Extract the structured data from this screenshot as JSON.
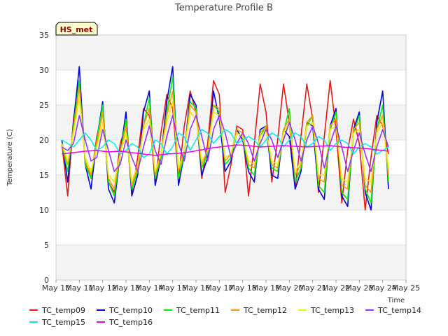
{
  "chart_data": {
    "type": "line",
    "title": "Temperature Profile B",
    "xlabel": "Time",
    "ylabel": "Temperature (C)",
    "badge": "HS_met",
    "ylim": [
      0,
      35
    ],
    "yticks": [
      0,
      5,
      10,
      15,
      20,
      25,
      30,
      35
    ],
    "xlim": [
      10,
      25
    ],
    "xticks": [
      {
        "v": 10,
        "label": "May 10"
      },
      {
        "v": 11,
        "label": "May 11"
      },
      {
        "v": 12,
        "label": "May 12"
      },
      {
        "v": 13,
        "label": "May 13"
      },
      {
        "v": 14,
        "label": "May 14"
      },
      {
        "v": 15,
        "label": "May 15"
      },
      {
        "v": 16,
        "label": "May 16"
      },
      {
        "v": 17,
        "label": "May 17"
      },
      {
        "v": 18,
        "label": "May 18"
      },
      {
        "v": 19,
        "label": "May 19"
      },
      {
        "v": 20,
        "label": "May 20"
      },
      {
        "v": 21,
        "label": "May 21"
      },
      {
        "v": 22,
        "label": "May 22"
      },
      {
        "v": 23,
        "label": "May 23"
      },
      {
        "v": 24,
        "label": "May 24"
      },
      {
        "v": 25,
        "label": "May 25"
      }
    ],
    "grid": true,
    "legend_position": "bottom",
    "series": [
      {
        "name": "TC_temp09",
        "color": "#e31a1c",
        "x": [
          10.25,
          10.5,
          10.75,
          11.0,
          11.25,
          11.5,
          11.75,
          12.0,
          12.25,
          12.5,
          12.75,
          13.0,
          13.25,
          13.5,
          13.75,
          14.0,
          14.25,
          14.5,
          14.75,
          15.0,
          15.25,
          15.5,
          15.75,
          16.0,
          16.25,
          16.5,
          16.75,
          17.0,
          17.25,
          17.5,
          17.75,
          18.0,
          18.25,
          18.5,
          18.75,
          19.0,
          19.25,
          19.5,
          19.75,
          20.0,
          20.25,
          20.5,
          20.75,
          21.0,
          21.25,
          21.5,
          21.75,
          22.0,
          22.25,
          22.5,
          22.75,
          23.0,
          23.25,
          23.5,
          23.75,
          24.0,
          24.25
        ],
        "y": [
          19.5,
          12.0,
          23.0,
          28.5,
          17.0,
          14.5,
          20.5,
          24.0,
          14.0,
          12.5,
          19.5,
          22.0,
          12.5,
          17.5,
          24.5,
          23.5,
          14.0,
          21.0,
          26.5,
          24.5,
          14.5,
          22.0,
          27.0,
          24.0,
          14.5,
          19.5,
          28.5,
          26.5,
          12.5,
          16.5,
          22.0,
          21.5,
          12.0,
          19.5,
          28.0,
          24.0,
          14.0,
          20.0,
          28.0,
          22.5,
          13.0,
          20.5,
          28.0,
          23.0,
          12.5,
          20.5,
          28.5,
          21.5,
          11.0,
          18.5,
          23.0,
          19.5,
          10.0,
          17.5,
          23.5,
          22.0,
          18.0
        ]
      },
      {
        "name": "TC_temp10",
        "color": "#0000dd",
        "x": [
          10.25,
          10.5,
          10.75,
          11.0,
          11.25,
          11.5,
          11.75,
          12.0,
          12.25,
          12.5,
          12.75,
          13.0,
          13.25,
          13.5,
          13.75,
          14.0,
          14.25,
          14.5,
          14.75,
          15.0,
          15.25,
          15.5,
          15.75,
          16.0,
          16.25,
          16.5,
          16.75,
          17.0,
          17.25,
          17.5,
          17.75,
          18.0,
          18.25,
          18.5,
          18.75,
          19.0,
          19.25,
          19.5,
          19.75,
          20.0,
          20.25,
          20.5,
          20.75,
          21.0,
          21.25,
          21.5,
          21.75,
          22.0,
          22.25,
          22.5,
          22.75,
          23.0,
          23.25,
          23.5,
          23.75,
          24.0,
          24.25
        ],
        "y": [
          20.0,
          14.0,
          22.5,
          30.5,
          16.5,
          13.0,
          20.0,
          25.5,
          13.0,
          11.0,
          18.0,
          24.0,
          12.0,
          15.0,
          24.0,
          27.0,
          13.5,
          17.5,
          25.5,
          30.5,
          13.5,
          18.0,
          26.5,
          25.0,
          15.0,
          17.5,
          27.0,
          23.0,
          15.5,
          17.0,
          21.5,
          20.0,
          15.5,
          14.0,
          21.5,
          22.0,
          15.0,
          14.5,
          21.5,
          20.5,
          13.0,
          15.5,
          22.5,
          22.0,
          13.0,
          11.5,
          22.0,
          24.5,
          12.0,
          10.5,
          21.5,
          24.0,
          12.5,
          10.0,
          22.5,
          27.0,
          13.0
        ]
      },
      {
        "name": "TC_temp11",
        "color": "#00ee00",
        "x": [
          10.25,
          10.5,
          10.75,
          11.0,
          11.25,
          11.5,
          11.75,
          12.0,
          12.25,
          12.5,
          12.75,
          13.0,
          13.25,
          13.5,
          13.75,
          14.0,
          14.25,
          14.5,
          14.75,
          15.0,
          15.25,
          15.5,
          15.75,
          16.0,
          16.25,
          16.5,
          16.75,
          17.0,
          17.25,
          17.5,
          17.75,
          18.0,
          18.25,
          18.5,
          18.75,
          19.0,
          19.25,
          19.5,
          19.75,
          20.0,
          20.25,
          20.5,
          20.75,
          21.0,
          21.25,
          21.5,
          21.75,
          22.0,
          22.25,
          22.5,
          22.75,
          23.0,
          23.25,
          23.5,
          23.75,
          24.0,
          24.25
        ],
        "y": [
          19.5,
          15.5,
          22.0,
          28.5,
          16.5,
          14.5,
          20.0,
          25.0,
          14.0,
          12.0,
          18.0,
          23.0,
          13.0,
          15.5,
          22.0,
          26.0,
          14.5,
          17.5,
          24.0,
          29.0,
          14.5,
          18.0,
          25.5,
          24.5,
          16.0,
          18.0,
          25.0,
          24.0,
          16.5,
          17.5,
          21.0,
          20.5,
          16.0,
          15.0,
          20.5,
          22.0,
          16.0,
          15.5,
          21.0,
          24.5,
          14.0,
          16.0,
          22.0,
          23.5,
          13.5,
          12.5,
          21.5,
          24.0,
          12.5,
          11.5,
          21.0,
          23.5,
          13.0,
          11.0,
          21.5,
          25.0,
          14.0
        ]
      },
      {
        "name": "TC_temp12",
        "color": "#ff9900",
        "x": [
          10.25,
          10.5,
          10.75,
          11.0,
          11.25,
          11.5,
          11.75,
          12.0,
          12.25,
          12.5,
          12.75,
          13.0,
          13.25,
          13.5,
          13.75,
          14.0,
          14.25,
          14.5,
          14.75,
          15.0,
          15.25,
          15.5,
          15.75,
          16.0,
          16.25,
          16.5,
          16.75,
          17.0,
          17.25,
          17.5,
          17.75,
          18.0,
          18.25,
          18.5,
          18.75,
          19.0,
          19.25,
          19.5,
          19.75,
          20.0,
          20.25,
          20.5,
          20.75,
          21.0,
          21.25,
          21.5,
          21.75,
          22.0,
          22.25,
          22.5,
          22.75,
          23.0,
          23.25,
          23.5,
          23.75,
          24.0,
          24.25
        ],
        "y": [
          19.5,
          16.5,
          21.5,
          27.5,
          17.0,
          15.0,
          19.5,
          24.0,
          14.5,
          13.0,
          18.0,
          22.0,
          13.5,
          16.0,
          22.0,
          24.5,
          15.0,
          18.0,
          23.5,
          27.0,
          15.5,
          18.5,
          25.0,
          24.0,
          16.5,
          18.5,
          25.0,
          24.5,
          17.0,
          18.0,
          21.5,
          21.0,
          16.5,
          16.0,
          21.0,
          22.0,
          16.5,
          16.0,
          21.5,
          23.0,
          15.0,
          16.5,
          22.5,
          23.5,
          14.5,
          14.0,
          22.0,
          23.0,
          13.5,
          13.0,
          21.5,
          22.5,
          13.5,
          12.5,
          21.5,
          23.5,
          15.0
        ]
      },
      {
        "name": "TC_temp13",
        "color": "#eeee00",
        "x": [
          10.25,
          10.5,
          10.75,
          11.0,
          11.25,
          11.5,
          11.75,
          12.0,
          12.25,
          12.5,
          12.75,
          13.0,
          13.25,
          13.5,
          13.75,
          14.0,
          14.25,
          14.5,
          14.75,
          15.0,
          15.25,
          15.5,
          15.75,
          16.0,
          16.25,
          16.5,
          16.75,
          17.0,
          17.25,
          17.5,
          17.75,
          18.0,
          18.25,
          18.5,
          18.75,
          19.0,
          19.25,
          19.5,
          19.75,
          20.0,
          20.25,
          20.5,
          20.75,
          21.0,
          21.25,
          21.5,
          21.75,
          22.0,
          22.25,
          22.5,
          22.75,
          23.0,
          23.25,
          23.5,
          23.75,
          24.0,
          24.25
        ],
        "y": [
          19.5,
          17.0,
          21.0,
          26.0,
          17.5,
          15.5,
          19.0,
          22.5,
          15.0,
          14.0,
          18.0,
          21.0,
          14.0,
          16.5,
          21.5,
          23.0,
          15.5,
          18.0,
          22.5,
          25.5,
          16.0,
          18.5,
          24.0,
          23.0,
          17.0,
          18.5,
          24.0,
          23.5,
          17.5,
          18.0,
          21.0,
          20.5,
          17.0,
          16.5,
          20.5,
          21.5,
          17.0,
          16.5,
          21.0,
          22.5,
          15.5,
          17.0,
          22.0,
          22.5,
          15.0,
          15.0,
          21.5,
          22.0,
          14.5,
          14.0,
          21.0,
          21.5,
          14.5,
          14.0,
          21.0,
          22.5,
          16.0
        ]
      },
      {
        "name": "TC_temp14",
        "color": "#9933ff",
        "x": [
          10.25,
          10.5,
          10.75,
          11.0,
          11.25,
          11.5,
          11.75,
          12.0,
          12.25,
          12.5,
          12.75,
          13.0,
          13.25,
          13.5,
          13.75,
          14.0,
          14.25,
          14.5,
          14.75,
          15.0,
          15.25,
          15.5,
          15.75,
          16.0,
          16.25,
          16.5,
          16.75,
          17.0,
          17.25,
          17.5,
          17.75,
          18.0,
          18.25,
          18.5,
          18.75,
          19.0,
          19.25,
          19.5,
          19.75,
          20.0,
          20.25,
          20.5,
          20.75,
          21.0,
          21.25,
          21.5,
          21.75,
          22.0,
          22.25,
          22.5,
          22.75,
          23.0,
          23.25,
          23.5,
          23.75,
          24.0,
          24.25
        ],
        "y": [
          19.0,
          18.5,
          19.5,
          23.5,
          20.0,
          17.0,
          17.5,
          21.5,
          18.5,
          15.5,
          16.5,
          20.0,
          17.5,
          15.5,
          19.0,
          22.0,
          18.5,
          16.5,
          20.5,
          23.5,
          19.5,
          17.0,
          21.5,
          23.5,
          20.5,
          17.0,
          21.5,
          23.5,
          21.0,
          17.5,
          19.5,
          21.0,
          19.5,
          17.0,
          19.5,
          21.5,
          20.0,
          17.5,
          20.0,
          22.5,
          20.0,
          17.0,
          20.0,
          22.0,
          19.5,
          16.0,
          19.5,
          22.0,
          19.0,
          15.5,
          18.5,
          21.0,
          18.0,
          15.5,
          19.0,
          21.5,
          19.0
        ]
      },
      {
        "name": "TC_temp15",
        "color": "#00eeee",
        "x": [
          10.25,
          10.5,
          10.75,
          11.0,
          11.25,
          11.5,
          11.75,
          12.0,
          12.25,
          12.5,
          12.75,
          13.0,
          13.25,
          13.5,
          13.75,
          14.0,
          14.25,
          14.5,
          14.75,
          15.0,
          15.25,
          15.5,
          15.75,
          16.0,
          16.25,
          16.5,
          16.75,
          17.0,
          17.25,
          17.5,
          17.75,
          18.0,
          18.25,
          18.5,
          18.75,
          19.0,
          19.25,
          19.5,
          19.75,
          20.0,
          20.25,
          20.5,
          20.75,
          21.0,
          21.25,
          21.5,
          21.75,
          22.0,
          22.25,
          22.5,
          22.75,
          23.0,
          23.25,
          23.5,
          23.75,
          24.0,
          24.25
        ],
        "y": [
          20.0,
          19.5,
          19.0,
          20.0,
          21.0,
          20.0,
          18.5,
          19.0,
          20.0,
          19.5,
          18.0,
          18.5,
          19.5,
          19.0,
          17.5,
          18.0,
          20.0,
          19.5,
          18.0,
          19.0,
          21.0,
          20.5,
          18.5,
          20.0,
          21.5,
          21.0,
          19.5,
          20.5,
          21.5,
          21.0,
          19.5,
          20.0,
          20.5,
          20.0,
          19.0,
          20.0,
          21.0,
          20.5,
          19.0,
          20.0,
          21.0,
          20.5,
          19.0,
          19.5,
          20.5,
          20.0,
          18.5,
          19.5,
          20.0,
          19.5,
          18.0,
          19.0,
          19.5,
          19.0,
          18.0,
          18.5,
          19.0
        ]
      },
      {
        "name": "TC_temp16",
        "color": "#ee00ee",
        "x": [
          10.25,
          10.75,
          11.25,
          11.75,
          12.25,
          12.75,
          13.25,
          13.75,
          14.25,
          14.75,
          15.25,
          15.75,
          16.25,
          16.75,
          17.25,
          17.75,
          18.25,
          18.75,
          19.25,
          19.75,
          20.25,
          20.75,
          21.25,
          21.75,
          22.25,
          22.75,
          23.25,
          23.75,
          24.25
        ],
        "y": [
          18.0,
          18.2,
          18.4,
          18.5,
          18.3,
          18.4,
          18.2,
          18.0,
          17.8,
          18.0,
          18.1,
          18.3,
          18.6,
          18.9,
          19.1,
          19.3,
          19.2,
          19.0,
          19.1,
          19.2,
          19.1,
          19.0,
          19.1,
          19.2,
          19.0,
          18.9,
          18.8,
          18.6,
          18.4
        ]
      }
    ]
  }
}
